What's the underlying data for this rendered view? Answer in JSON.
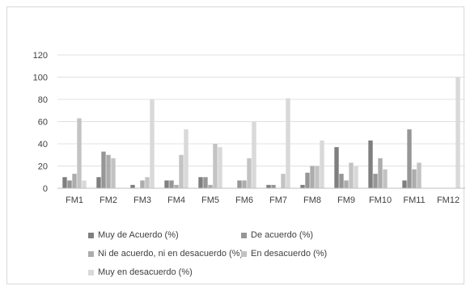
{
  "chart_data": {
    "type": "bar",
    "title": "",
    "xlabel": "",
    "ylabel": "",
    "ylim": [
      0,
      120
    ],
    "yticks": [
      0,
      20,
      40,
      60,
      80,
      100,
      120
    ],
    "grid": "horizontal",
    "legend_position": "bottom",
    "categories": [
      "FM1",
      "FM2",
      "FM3",
      "FM4",
      "FM5",
      "FM6",
      "FM7",
      "FM8",
      "FM9",
      "FM10",
      "FM11",
      "FM12"
    ],
    "series": [
      {
        "name": "Muy de Acuerdo (%)",
        "color": "#7f7f7f",
        "values": [
          10,
          10,
          3,
          7,
          10,
          0,
          3,
          3,
          37,
          43,
          7,
          0
        ]
      },
      {
        "name": "De acuerdo  (%)",
        "color": "#969696",
        "values": [
          7,
          33,
          0,
          7,
          10,
          7,
          3,
          14,
          13,
          13,
          53,
          0
        ]
      },
      {
        "name": "Ni de acuerdo, ni en desacuerdo  (%)",
        "color": "#acacac",
        "values": [
          13,
          30,
          7,
          3,
          3,
          7,
          0,
          20,
          7,
          27,
          17,
          0
        ]
      },
      {
        "name": "En desacuerdo  (%)",
        "color": "#c3c3c3",
        "values": [
          63,
          27,
          10,
          30,
          40,
          27,
          13,
          20,
          23,
          17,
          23,
          0
        ]
      },
      {
        "name": "Muy en desacuerdo  (%)",
        "color": "#d9d9d9",
        "values": [
          7,
          0,
          80,
          53,
          37,
          60,
          81,
          43,
          20,
          0,
          0,
          100
        ]
      }
    ]
  }
}
